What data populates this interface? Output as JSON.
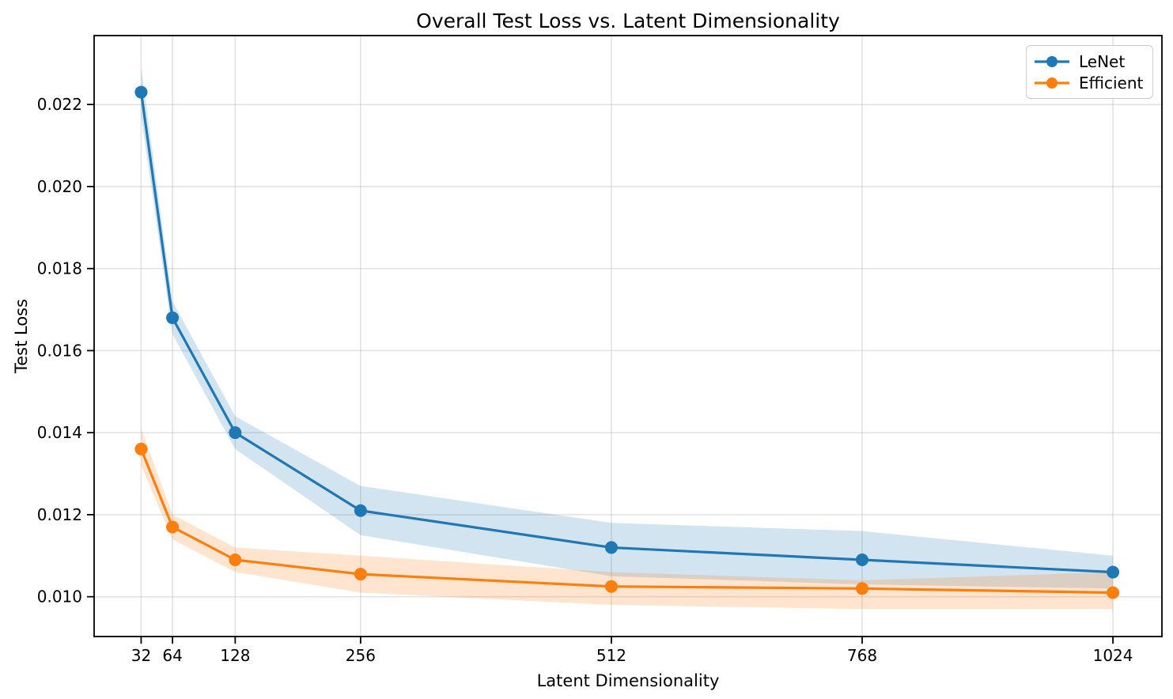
{
  "chart_data": {
    "type": "line",
    "title": "Overall Test Loss vs. Latent Dimensionality",
    "xlabel": "Latent Dimensionality",
    "ylabel": "Test Loss",
    "x": [
      32,
      64,
      128,
      256,
      512,
      768,
      1024
    ],
    "xticks": [
      32,
      64,
      128,
      256,
      512,
      768,
      1024
    ],
    "yticks": [
      0.01,
      0.012,
      0.014,
      0.016,
      0.018,
      0.02,
      0.022
    ],
    "ytick_labels": [
      "0.010",
      "0.012",
      "0.014",
      "0.016",
      "0.018",
      "0.020",
      "0.022"
    ],
    "xlim": [
      -16,
      1074
    ],
    "ylim": [
      0.00903,
      0.02368
    ],
    "grid": true,
    "legend_position": "upper right",
    "band_alpha": 0.2,
    "line_width": 3.2,
    "marker": "circle",
    "marker_radius": 8,
    "axis_color": "#000000",
    "grid_color": "#b0b0b0",
    "series": [
      {
        "name": "LeNet",
        "color": "#1f77b4",
        "values": [
          0.0223,
          0.0168,
          0.014,
          0.0121,
          0.0112,
          0.0109,
          0.0106
        ],
        "band_upper": [
          0.0229,
          0.0172,
          0.0144,
          0.0127,
          0.0118,
          0.0116,
          0.011
        ],
        "band_lower": [
          0.0217,
          0.0164,
          0.0136,
          0.0115,
          0.0105,
          0.0103,
          0.0102
        ]
      },
      {
        "name": "Efficient",
        "color": "#ff7f0e",
        "values": [
          0.0136,
          0.0117,
          0.0109,
          0.01055,
          0.01025,
          0.0102,
          0.0101
        ],
        "band_upper": [
          0.0141,
          0.012,
          0.0112,
          0.011,
          0.0106,
          0.0104,
          0.0106
        ],
        "band_lower": [
          0.0132,
          0.0114,
          0.0106,
          0.0101,
          0.0098,
          0.0097,
          0.0097
        ]
      }
    ]
  }
}
